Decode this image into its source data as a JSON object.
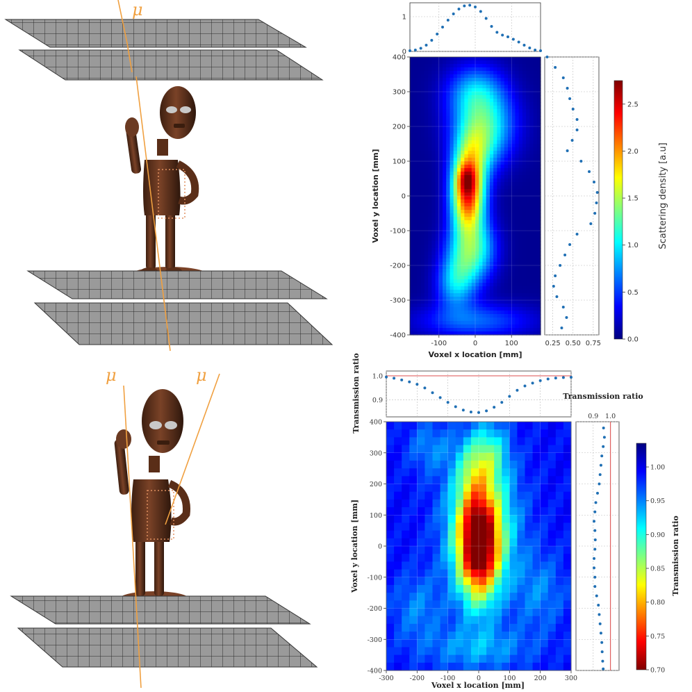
{
  "illustrations": {
    "top_muon_symbol": "μ",
    "bottom_muon_symbols": [
      "μ",
      "μ"
    ],
    "muon_color": "#f0a040",
    "detector_plane_color": "#8c8c8c",
    "statue_color": "#6b3a22"
  },
  "chart_data": [
    {
      "id": "scattering",
      "type": "heatmap",
      "title": "",
      "xlabel": "Voxel x location [mm]",
      "ylabel": "Voxel y location [mm]",
      "xlim": [
        -180,
        180
      ],
      "ylim": [
        -400,
        400
      ],
      "xticks": [
        -100,
        0,
        100
      ],
      "yticks": [
        -400,
        -300,
        -200,
        -100,
        0,
        100,
        200,
        300,
        400
      ],
      "colormap": "jet",
      "colorbar": {
        "label": "Scattering density [a.u]",
        "range": [
          0.0,
          2.75
        ],
        "ticks": [
          "0.0",
          "0.5",
          "1.0",
          "1.5",
          "2.0",
          "2.5"
        ],
        "tick_values": [
          0.0,
          0.5,
          1.0,
          1.5,
          2.0,
          2.5
        ]
      },
      "top_profile": {
        "ylim": [
          0,
          1.4
        ],
        "yticks": [
          0,
          1
        ],
        "x": [
          -180,
          -165,
          -150,
          -135,
          -120,
          -105,
          -90,
          -75,
          -60,
          -45,
          -30,
          -15,
          0,
          15,
          30,
          45,
          60,
          75,
          90,
          105,
          120,
          135,
          150,
          165,
          180
        ],
        "y": [
          0.02,
          0.04,
          0.09,
          0.18,
          0.32,
          0.5,
          0.7,
          0.9,
          1.08,
          1.22,
          1.31,
          1.33,
          1.28,
          1.15,
          0.95,
          0.72,
          0.55,
          0.47,
          0.42,
          0.35,
          0.27,
          0.18,
          0.1,
          0.04,
          0.02
        ]
      },
      "right_profile": {
        "xlim": [
          0.15,
          0.82
        ],
        "xticks": [
          "0.25",
          "0.50",
          "0.75"
        ],
        "xtick_values": [
          0.25,
          0.5,
          0.75
        ],
        "y": [
          400,
          370,
          340,
          310,
          280,
          250,
          220,
          190,
          160,
          130,
          100,
          70,
          40,
          10,
          -20,
          -50,
          -80,
          -110,
          -140,
          -170,
          -200,
          -230,
          -260,
          -290,
          -320,
          -350,
          -380
        ],
        "x": [
          0.18,
          0.28,
          0.38,
          0.43,
          0.46,
          0.5,
          0.55,
          0.55,
          0.49,
          0.43,
          0.6,
          0.7,
          0.76,
          0.8,
          0.79,
          0.77,
          0.72,
          0.55,
          0.46,
          0.4,
          0.34,
          0.28,
          0.26,
          0.3,
          0.38,
          0.42,
          0.36
        ]
      },
      "heat_blobs": [
        {
          "x": -20,
          "y": 10,
          "sx": 32,
          "sy": 80,
          "v": 2.3
        },
        {
          "x": -25,
          "y": 50,
          "sx": 18,
          "sy": 28,
          "v": 0.5
        },
        {
          "x": 25,
          "y": 200,
          "sx": 60,
          "sy": 70,
          "v": 0.95
        },
        {
          "x": 0,
          "y": 300,
          "sx": 55,
          "sy": 55,
          "v": 0.7
        },
        {
          "x": 5,
          "y": 130,
          "sx": 40,
          "sy": 60,
          "v": 0.6
        },
        {
          "x": -30,
          "y": -180,
          "sx": 40,
          "sy": 70,
          "v": 0.95
        },
        {
          "x": -60,
          "y": -260,
          "sx": 35,
          "sy": 50,
          "v": 0.55
        },
        {
          "x": 20,
          "y": -150,
          "sx": 35,
          "sy": 60,
          "v": 0.5
        },
        {
          "x": 0,
          "y": -360,
          "sx": 110,
          "sy": 35,
          "v": 0.55
        }
      ]
    },
    {
      "id": "transmission",
      "type": "heatmap",
      "title": "",
      "xlabel": "Voxel x location [mm]",
      "ylabel": "Voxel y location [mm]",
      "xlim": [
        -300,
        300
      ],
      "ylim": [
        -400,
        400
      ],
      "xticks": [
        -300,
        -200,
        -100,
        0,
        100,
        200,
        300
      ],
      "yticks": [
        -400,
        -300,
        -200,
        -100,
        0,
        100,
        200,
        300,
        400
      ],
      "colormap": "jet_r",
      "colorbar": {
        "label": "Transmission ratio",
        "range": [
          0.7,
          1.035
        ],
        "ticks": [
          "0.70",
          "0.75",
          "0.80",
          "0.85",
          "0.90",
          "0.95",
          "1.00"
        ],
        "tick_values": [
          0.7,
          0.75,
          0.8,
          0.85,
          0.9,
          0.95,
          1.0
        ]
      },
      "top_profile": {
        "ylabel": "Transmission ratio",
        "ylim": [
          0.83,
          1.02
        ],
        "yticks": [
          "0.9",
          "1.0"
        ],
        "ytick_values": [
          0.9,
          1.0
        ],
        "reference_line": 1.0,
        "reference_color": "#e06060",
        "x": [
          -300,
          -275,
          -250,
          -225,
          -200,
          -175,
          -150,
          -125,
          -100,
          -75,
          -50,
          -25,
          0,
          25,
          50,
          75,
          100,
          125,
          150,
          175,
          200,
          225,
          250,
          275,
          300
        ],
        "y": [
          0.995,
          0.99,
          0.983,
          0.975,
          0.965,
          0.95,
          0.93,
          0.91,
          0.89,
          0.872,
          0.858,
          0.85,
          0.848,
          0.855,
          0.87,
          0.89,
          0.915,
          0.94,
          0.958,
          0.97,
          0.98,
          0.987,
          0.991,
          0.993,
          0.994
        ]
      },
      "right_profile": {
        "xlabel": "Transmission ratio",
        "xlim": [
          0.8,
          1.05
        ],
        "xticks": [
          "0.9",
          "1.0"
        ],
        "xtick_values": [
          0.9,
          1.0
        ],
        "reference_line": 1.0,
        "reference_color": "#e06060",
        "y": [
          380,
          350,
          320,
          290,
          260,
          230,
          200,
          170,
          140,
          110,
          80,
          50,
          20,
          -10,
          -40,
          -70,
          -100,
          -130,
          -160,
          -190,
          -220,
          -250,
          -280,
          -310,
          -340,
          -370,
          -395
        ],
        "x": [
          0.96,
          0.965,
          0.958,
          0.95,
          0.945,
          0.94,
          0.935,
          0.925,
          0.915,
          0.91,
          0.905,
          0.91,
          0.912,
          0.91,
          0.905,
          0.905,
          0.91,
          0.91,
          0.92,
          0.93,
          0.935,
          0.94,
          0.945,
          0.95,
          0.952,
          0.955,
          0.958
        ]
      },
      "heat_blobs": [
        {
          "x": 0,
          "y": 0,
          "sx": 45,
          "sy": 120,
          "v": 0.25
        },
        {
          "x": 10,
          "y": 60,
          "sx": 80,
          "sy": 150,
          "v": 0.12
        },
        {
          "x": -20,
          "y": 250,
          "sx": 40,
          "sy": 80,
          "v": 0.06
        },
        {
          "x": 40,
          "y": 300,
          "sx": 40,
          "sy": 70,
          "v": 0.07
        },
        {
          "x": -160,
          "y": 320,
          "sx": 50,
          "sy": 60,
          "v": 0.04
        },
        {
          "x": 200,
          "y": -150,
          "sx": 60,
          "sy": 90,
          "v": 0.04
        },
        {
          "x": -200,
          "y": -200,
          "sx": 60,
          "sy": 80,
          "v": 0.04
        },
        {
          "x": 0,
          "y": -330,
          "sx": 120,
          "sy": 50,
          "v": 0.05
        }
      ]
    }
  ]
}
